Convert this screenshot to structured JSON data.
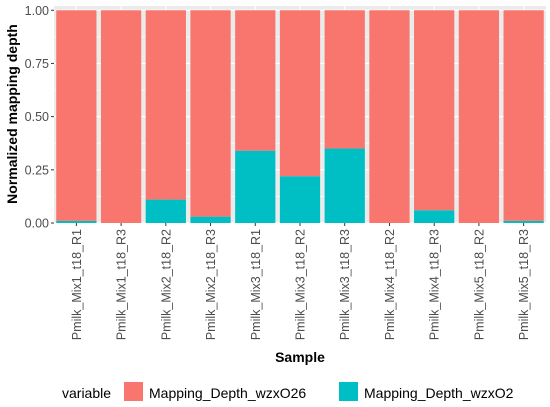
{
  "chart_data": {
    "type": "bar",
    "stacked": true,
    "xlabel": "Sample",
    "ylabel": "Normalized mapping depth",
    "ylim": [
      0,
      1.02
    ],
    "yticks": [
      0.0,
      0.25,
      0.5,
      0.75,
      1.0
    ],
    "ytick_labels": [
      "0.00",
      "0.25",
      "0.50",
      "0.75",
      "1.00"
    ],
    "grid": true,
    "legend_position": "bottom",
    "legend_title": "variable",
    "categories": [
      "Pmilk_Mix1_t18_R1",
      "Pmilk_Mix1_t18_R3",
      "Pmilk_Mix2_t18_R2",
      "Pmilk_Mix2_t18_R3",
      "Pmilk_Mix3_t18_R1",
      "Pmilk_Mix3_t18_R2",
      "Pmilk_Mix3_t18_R3",
      "Pmilk_Mix4_t18_R2",
      "Pmilk_Mix4_t18_R3",
      "Pmilk_Mix5_t18_R2",
      "Pmilk_Mix5_t18_R3"
    ],
    "series": [
      {
        "name": "Mapping_Depth_wzxO2",
        "color": "#00BFC4",
        "values": [
          0.01,
          0.0,
          0.11,
          0.03,
          0.34,
          0.22,
          0.35,
          0.0,
          0.06,
          0.0,
          0.01
        ]
      },
      {
        "name": "Mapping_Depth_wzxO26",
        "color": "#F8766D",
        "values": [
          0.99,
          1.0,
          0.89,
          0.97,
          0.66,
          0.78,
          0.65,
          1.0,
          0.94,
          1.0,
          0.99
        ]
      }
    ],
    "legend_order": [
      "Mapping_Depth_wzxO26",
      "Mapping_Depth_wzxO2"
    ]
  },
  "colors": {
    "panel_background": "#EBEBEB",
    "grid_major": "#FFFFFF"
  }
}
